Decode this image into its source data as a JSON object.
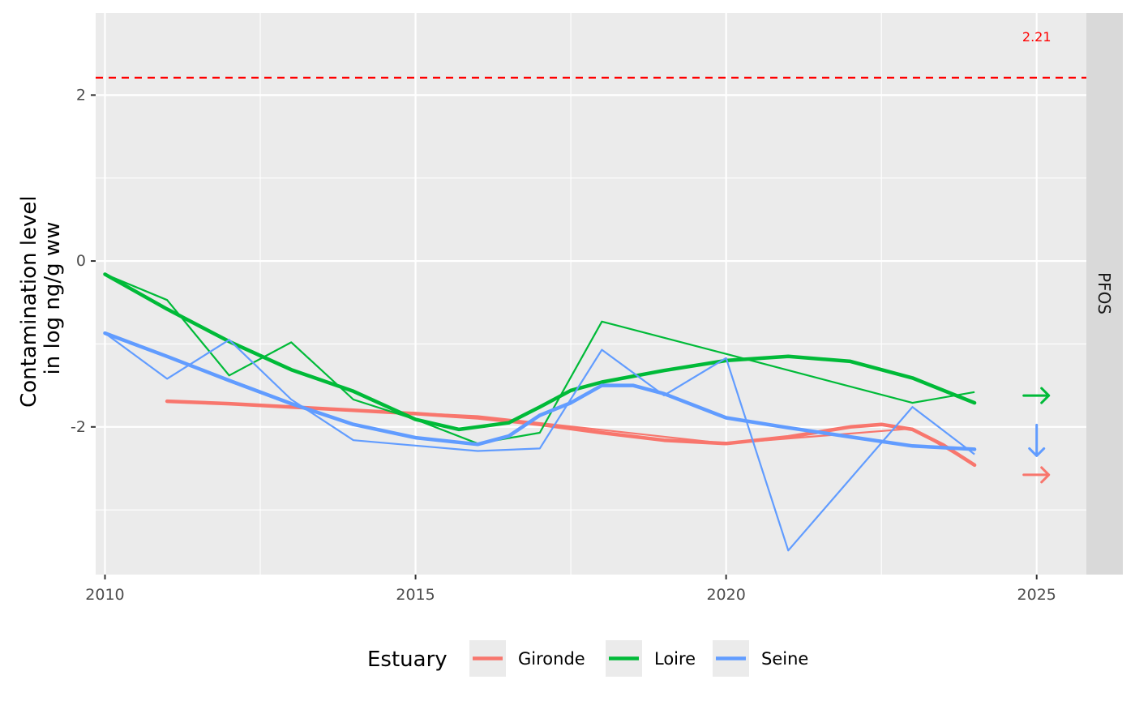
{
  "chart_data": {
    "type": "line",
    "title": "",
    "xlabel": "",
    "ylabel_lines": [
      "Contamination level",
      "in log ng/g ww"
    ],
    "facet_label": "PFOS",
    "xlim": [
      2009.85,
      2025.8
    ],
    "ylim": [
      -3.78,
      2.99
    ],
    "x_ticks": [
      2010,
      2015,
      2020,
      2025
    ],
    "x_tick_labels": [
      "2010",
      "2015",
      "2020",
      "2025"
    ],
    "y_ticks": [
      -2,
      0,
      2
    ],
    "y_tick_labels": [
      "-2",
      "0",
      "2"
    ],
    "grid": true,
    "threshold": {
      "value": 2.21,
      "label": "2.21",
      "color": "#FF0000",
      "style": "dashed"
    },
    "legend": {
      "title": "Estuary",
      "position": "bottom"
    },
    "series": [
      {
        "name": "Gironde",
        "color": "#F8766D",
        "observed": {
          "x": [
            2011,
            2016,
            2020,
            2023,
            2024
          ],
          "y": [
            -1.69,
            -1.87,
            -2.2,
            -2.02,
            -2.46
          ]
        },
        "smooth": {
          "x": [
            2011,
            2012,
            2013,
            2014,
            2015,
            2016,
            2017,
            2018,
            2019,
            2020,
            2021,
            2022,
            2022.5,
            2023,
            2023.5,
            2024
          ],
          "y": [
            -1.69,
            -1.72,
            -1.76,
            -1.8,
            -1.84,
            -1.89,
            -1.97,
            -2.07,
            -2.16,
            -2.2,
            -2.12,
            -2.0,
            -1.97,
            -2.03,
            -2.22,
            -2.46
          ]
        },
        "trend": "stable"
      },
      {
        "name": "Loire",
        "color": "#00BA38",
        "observed": {
          "x": [
            2010,
            2011,
            2012,
            2013,
            2014,
            2015,
            2016,
            2017,
            2018,
            2020,
            2023,
            2024
          ],
          "y": [
            -0.16,
            -0.47,
            -1.38,
            -0.98,
            -1.67,
            -1.91,
            -2.2,
            -2.07,
            -0.73,
            -1.12,
            -1.71,
            -1.58
          ]
        },
        "smooth": {
          "x": [
            2010,
            2011,
            2012,
            2013,
            2014,
            2015,
            2015.7,
            2016.5,
            2017,
            2017.5,
            2018,
            2019,
            2020,
            2021,
            2022,
            2023,
            2024
          ],
          "y": [
            -0.16,
            -0.58,
            -0.97,
            -1.31,
            -1.57,
            -1.91,
            -2.03,
            -1.95,
            -1.76,
            -1.56,
            -1.46,
            -1.32,
            -1.2,
            -1.15,
            -1.21,
            -1.41,
            -1.71
          ]
        },
        "trend": "stable"
      },
      {
        "name": "Seine",
        "color": "#619CFF",
        "observed": {
          "x": [
            2010,
            2011,
            2012,
            2013,
            2014,
            2016,
            2017,
            2018,
            2019,
            2020,
            2021,
            2023,
            2024
          ],
          "y": [
            -0.87,
            -1.42,
            -0.95,
            -1.67,
            -2.16,
            -2.29,
            -2.26,
            -1.07,
            -1.62,
            -1.17,
            -3.49,
            -1.76,
            -2.33
          ]
        },
        "smooth": {
          "x": [
            2010,
            2011,
            2012,
            2013,
            2014,
            2015,
            2016,
            2016.5,
            2017,
            2017.5,
            2018,
            2018.5,
            2019,
            2020,
            2021,
            2022,
            2023,
            2024
          ],
          "y": [
            -0.87,
            -1.15,
            -1.44,
            -1.72,
            -1.97,
            -2.13,
            -2.21,
            -2.11,
            -1.86,
            -1.71,
            -1.5,
            -1.5,
            -1.6,
            -1.89,
            -2.01,
            -2.12,
            -2.23,
            -2.27
          ]
        },
        "trend": "decreasing"
      }
    ]
  }
}
